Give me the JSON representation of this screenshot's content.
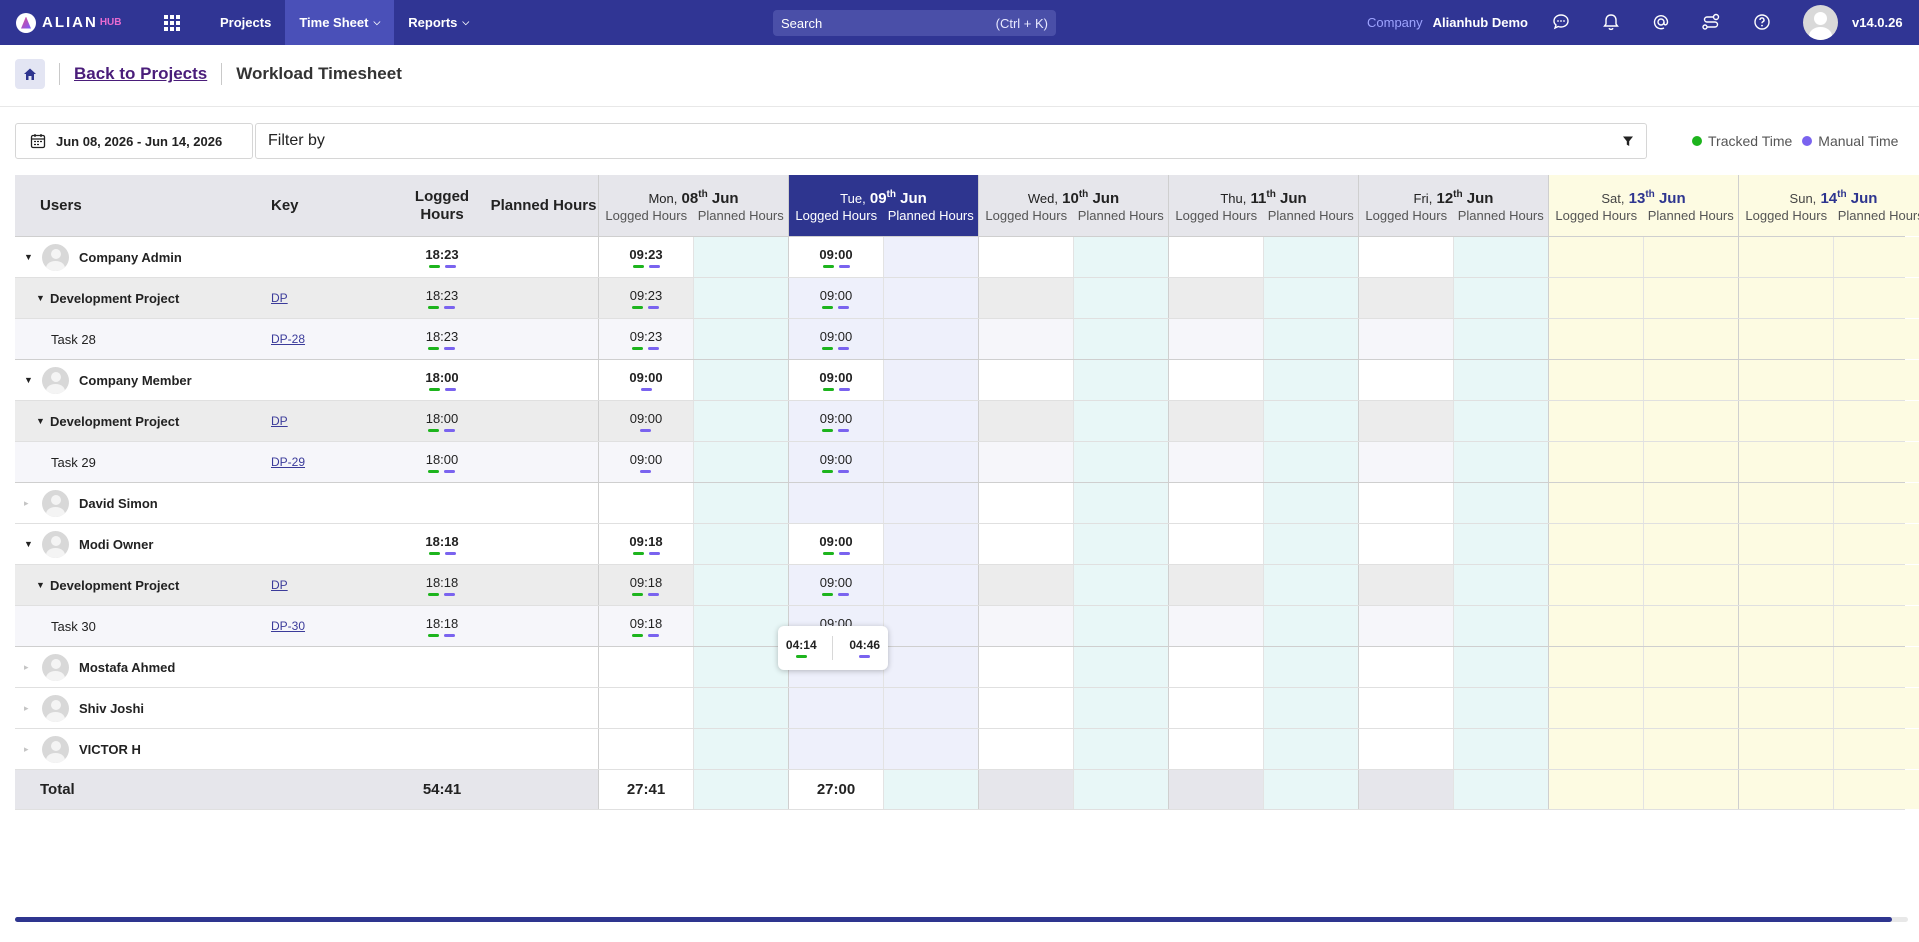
{
  "nav": {
    "logo_text": "ALIAN",
    "logo_hub": "HUB",
    "items": [
      {
        "label": "Projects",
        "active": false,
        "dropdown": false
      },
      {
        "label": "Time Sheet",
        "active": true,
        "dropdown": true
      },
      {
        "label": "Reports",
        "active": false,
        "dropdown": true
      }
    ],
    "search_placeholder": "Search",
    "search_shortcut": "(Ctrl + K)",
    "company_label": "Company",
    "company_name": "Alianhub Demo",
    "icons": [
      "chat-icon",
      "bell-icon",
      "at-icon",
      "route-icon",
      "help-icon"
    ],
    "version": "v14.0.26"
  },
  "breadcrumb": {
    "back_label": "Back to Projects",
    "title": "Workload Timesheet"
  },
  "filters": {
    "date_range": "Jun 08, 2026 - Jun 14, 2026",
    "filter_placeholder": "Filter by",
    "legend_tracked": "Tracked Time",
    "legend_manual": "Manual Time",
    "tracked_color": "#1db41d",
    "manual_color": "#7a63ef"
  },
  "table": {
    "headers": {
      "users": "Users",
      "key": "Key",
      "logged": "Logged Hours",
      "planned": "Planned Hours"
    },
    "sub_logged": "Logged Hours",
    "sub_planned": "Planned Hours",
    "days": [
      {
        "wd": "Mon,",
        "num": "08",
        "suf": "th",
        "mon": "Jun",
        "kind": "normal"
      },
      {
        "wd": "Tue,",
        "num": "09",
        "suf": "th",
        "mon": "Jun",
        "kind": "selected"
      },
      {
        "wd": "Wed,",
        "num": "10",
        "suf": "th",
        "mon": "Jun",
        "kind": "normal"
      },
      {
        "wd": "Thu,",
        "num": "11",
        "suf": "th",
        "mon": "Jun",
        "kind": "normal"
      },
      {
        "wd": "Fri,",
        "num": "12",
        "suf": "th",
        "mon": "Jun",
        "kind": "normal"
      },
      {
        "wd": "Sat,",
        "num": "13",
        "suf": "th",
        "mon": "Jun",
        "kind": "weekend"
      },
      {
        "wd": "Sun,",
        "num": "14",
        "suf": "th",
        "mon": "Jun",
        "kind": "weekend"
      }
    ],
    "rows": [
      {
        "level": 0,
        "name": "Company Admin",
        "key": "",
        "logged": "18:23",
        "mon": "09:23",
        "tue": "09:00",
        "expanded": true,
        "bars": true
      },
      {
        "level": 1,
        "name": "Development Project",
        "key": "DP",
        "logged": "18:23",
        "mon": "09:23",
        "tue": "09:00",
        "expanded": true,
        "bars": true
      },
      {
        "level": 2,
        "name": "Task 28",
        "key": "DP-28",
        "logged": "18:23",
        "mon": "09:23",
        "tue": "09:00",
        "bars": true
      },
      {
        "level": 0,
        "name": "Company Member",
        "key": "",
        "logged": "18:00",
        "mon": "09:00",
        "tue": "09:00",
        "expanded": true,
        "bars": true,
        "mon_manual_only": true
      },
      {
        "level": 1,
        "name": "Development Project",
        "key": "DP",
        "logged": "18:00",
        "mon": "09:00",
        "tue": "09:00",
        "expanded": true,
        "bars": true,
        "mon_manual_only": true
      },
      {
        "level": 2,
        "name": "Task 29",
        "key": "DP-29",
        "logged": "18:00",
        "mon": "09:00",
        "tue": "09:00",
        "bars": true,
        "mon_manual_only": true
      },
      {
        "level": 0,
        "name": "David Simon",
        "key": "",
        "logged": "",
        "mon": "",
        "tue": "",
        "expanded": false,
        "bars": false
      },
      {
        "level": 0,
        "name": "Modi Owner",
        "key": "",
        "logged": "18:18",
        "mon": "09:18",
        "tue": "09:00",
        "expanded": true,
        "bars": true
      },
      {
        "level": 1,
        "name": "Development Project",
        "key": "DP",
        "logged": "18:18",
        "mon": "09:18",
        "tue": "09:00",
        "expanded": true,
        "bars": true
      },
      {
        "level": 2,
        "name": "Task 30",
        "key": "DP-30",
        "logged": "18:18",
        "mon": "09:18",
        "tue": "09:00",
        "bars": true
      },
      {
        "level": 0,
        "name": "Mostafa Ahmed",
        "key": "",
        "logged": "",
        "mon": "",
        "tue": "",
        "expanded": false,
        "bars": false
      },
      {
        "level": 0,
        "name": "Shiv Joshi",
        "key": "",
        "logged": "",
        "mon": "",
        "tue": "",
        "expanded": false,
        "bars": false
      },
      {
        "level": 0,
        "name": "VICTOR H",
        "key": "",
        "logged": "",
        "mon": "",
        "tue": "",
        "expanded": false,
        "bars": false
      }
    ],
    "total": {
      "label": "Total",
      "logged": "54:41",
      "mon": "27:41",
      "tue": "27:00"
    }
  },
  "tooltip": {
    "tracked": "04:14",
    "manual": "04:46"
  }
}
